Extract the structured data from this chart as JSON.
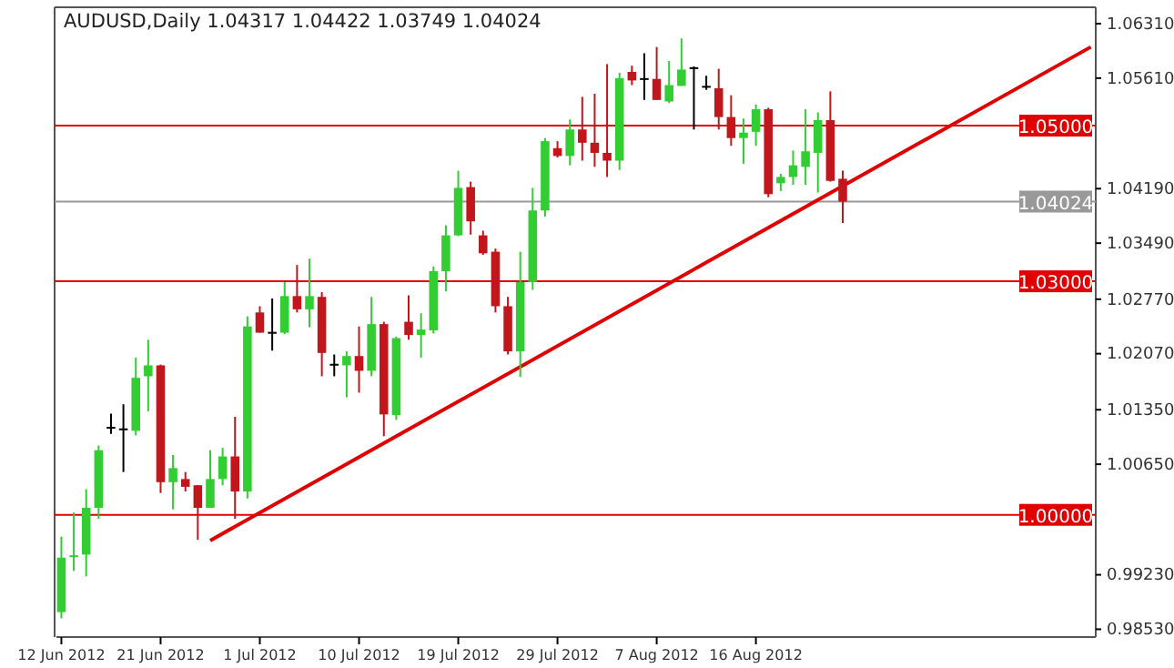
{
  "chart_data": {
    "type": "candlestick",
    "title": "AUDUSD,Daily  1.04317 1.04422 1.03749 1.04024",
    "categories": [
      "12 Jun 2012",
      null,
      null,
      null,
      null,
      null,
      null,
      null,
      "21 Jun 2012",
      null,
      null,
      null,
      null,
      null,
      null,
      null,
      "1 Jul 2012",
      null,
      null,
      null,
      null,
      null,
      null,
      null,
      "10 Jul 2012",
      null,
      null,
      null,
      null,
      null,
      null,
      null,
      "19 Jul 2012",
      null,
      null,
      null,
      null,
      null,
      null,
      null,
      "29 Jul 2012",
      null,
      null,
      null,
      null,
      null,
      null,
      null,
      "7 Aug 2012",
      null,
      null,
      null,
      null,
      null,
      null,
      null,
      "16 Aug 2012",
      null,
      null,
      null,
      null,
      null,
      null,
      null,
      null,
      null,
      null,
      null,
      null,
      null,
      null,
      null,
      null,
      null,
      null,
      null,
      null,
      null,
      null,
      null,
      null,
      null,
      null,
      null
    ],
    "ohlc": [
      [
        0.9875,
        0.9972,
        0.9867,
        0.9945
      ],
      [
        0.9946,
        1.0003,
        0.9928,
        0.9948
      ],
      [
        0.9949,
        1.0033,
        0.9921,
        1.0009
      ],
      [
        1.0009,
        1.0089,
        0.9995,
        1.0083
      ],
      [
        1.0112,
        1.013,
        1.0104,
        1.0113
      ],
      [
        1.0111,
        1.0142,
        1.0055,
        1.011
      ],
      [
        1.0108,
        1.0202,
        1.0102,
        1.0176
      ],
      [
        1.0178,
        1.0225,
        1.0133,
        1.0192
      ],
      [
        1.0192,
        1.0193,
        1.0028,
        1.0042
      ],
      [
        1.0042,
        1.0077,
        1.0007,
        1.006
      ],
      [
        1.0046,
        1.0055,
        1.003,
        1.0036
      ],
      [
        1.0038,
        1.0038,
        0.9968,
        1.0009
      ],
      [
        1.0009,
        1.0083,
        1.0009,
        1.0046
      ],
      [
        1.0046,
        1.0086,
        1.0038,
        1.0075
      ],
      [
        1.0075,
        1.0126,
        0.9995,
        1.003
      ],
      [
        1.003,
        1.0255,
        1.0021,
        1.0242
      ],
      [
        1.026,
        1.0268,
        1.0234,
        1.0234
      ],
      [
        1.0235,
        1.0278,
        1.0211,
        1.0234
      ],
      [
        1.0234,
        1.0299,
        1.0232,
        1.0281
      ],
      [
        1.0281,
        1.0321,
        1.026,
        1.0264
      ],
      [
        1.0264,
        1.0329,
        1.0241,
        1.0281
      ],
      [
        1.028,
        1.0286,
        1.0178,
        1.0208
      ],
      [
        1.0194,
        1.0206,
        1.0178,
        1.0193
      ],
      [
        1.0192,
        1.021,
        1.0151,
        1.0204
      ],
      [
        1.0204,
        1.0242,
        1.0157,
        1.0185
      ],
      [
        1.0185,
        1.028,
        1.0178,
        1.0245
      ],
      [
        1.0245,
        1.0248,
        1.0101,
        1.0129
      ],
      [
        1.0128,
        1.0229,
        1.0122,
        1.0227
      ],
      [
        1.0248,
        1.0282,
        1.0225,
        1.0231
      ],
      [
        1.0231,
        1.0259,
        1.0202,
        1.0238
      ],
      [
        1.0237,
        1.0319,
        1.0233,
        1.0313
      ],
      [
        1.0313,
        1.0372,
        1.0287,
        1.0359
      ],
      [
        1.0359,
        1.0442,
        1.0358,
        1.042
      ],
      [
        1.0421,
        1.0428,
        1.036,
        1.0377
      ],
      [
        1.0359,
        1.0365,
        1.0334,
        1.0336
      ],
      [
        1.0338,
        1.0342,
        1.026,
        1.0268
      ],
      [
        1.0268,
        1.028,
        1.0206,
        1.021
      ],
      [
        1.021,
        1.0338,
        1.0177,
        1.0299
      ],
      [
        1.0299,
        1.042,
        1.0289,
        1.0391
      ],
      [
        1.0391,
        1.0484,
        1.0383,
        1.048
      ],
      [
        1.0471,
        1.048,
        1.0459,
        1.0461
      ],
      [
        1.0461,
        1.0508,
        1.0449,
        1.0495
      ],
      [
        1.0495,
        1.0537,
        1.0455,
        1.0478
      ],
      [
        1.0478,
        1.0541,
        1.0447,
        1.0465
      ],
      [
        1.0465,
        1.0579,
        1.0434,
        1.0455
      ],
      [
        1.0455,
        1.0568,
        1.0443,
        1.0561
      ],
      [
        1.0569,
        1.0577,
        1.0552,
        1.0558
      ],
      [
        1.0561,
        1.0593,
        1.0533,
        1.056
      ],
      [
        1.056,
        1.0601,
        1.0533,
        1.0533
      ],
      [
        1.0531,
        1.0583,
        1.0529,
        1.0552
      ],
      [
        1.0551,
        1.0612,
        1.0551,
        1.0572
      ],
      [
        1.0575,
        1.0576,
        1.0495,
        1.0574
      ],
      [
        1.0551,
        1.0564,
        1.0546,
        1.055
      ],
      [
        1.0548,
        1.0573,
        1.0495,
        1.0511
      ],
      [
        1.0511,
        1.0539,
        1.0474,
        1.0484
      ],
      [
        1.0484,
        1.0509,
        1.0451,
        1.0491
      ],
      [
        1.0492,
        1.0527,
        1.0474,
        1.0521
      ],
      [
        1.0521,
        1.0523,
        1.0408,
        1.0412
      ],
      [
        1.0426,
        1.0438,
        1.0416,
        1.0434
      ],
      [
        1.0434,
        1.0468,
        1.0424,
        1.0449
      ],
      [
        1.0447,
        1.0521,
        1.0424,
        1.0467
      ],
      [
        1.0465,
        1.0517,
        1.0414,
        1.0507
      ],
      [
        1.0507,
        1.0544,
        1.0428,
        1.0429
      ],
      [
        1.04317,
        1.04422,
        1.03749,
        1.04024
      ],
      null,
      null,
      null,
      null,
      null,
      null,
      null,
      null,
      null,
      null,
      null,
      null,
      null,
      null,
      null,
      null,
      null,
      null,
      null,
      null
    ],
    "colors": [
      "#32cd32",
      "#32cd32",
      "#32cd32",
      "#32cd32",
      "#000000",
      "#000000",
      "#32cd32",
      "#32cd32",
      "#c0161c",
      "#32cd32",
      "#c0161c",
      "#c0161c",
      "#32cd32",
      "#32cd32",
      "#c0161c",
      "#32cd32",
      "#c0161c",
      "#000000",
      "#32cd32",
      "#c0161c",
      "#32cd32",
      "#c0161c",
      "#000000",
      "#32cd32",
      "#c0161c",
      "#32cd32",
      "#c0161c",
      "#32cd32",
      "#c0161c",
      "#32cd32",
      "#32cd32",
      "#32cd32",
      "#32cd32",
      "#c0161c",
      "#c0161c",
      "#c0161c",
      "#c0161c",
      "#32cd32",
      "#32cd32",
      "#32cd32",
      "#c0161c",
      "#32cd32",
      "#c0161c",
      "#c0161c",
      "#c0161c",
      "#32cd32",
      "#c0161c",
      "#000000",
      "#c0161c",
      "#32cd32",
      "#32cd32",
      "#000000",
      "#000000",
      "#c0161c",
      "#c0161c",
      "#32cd32",
      "#32cd32",
      "#c0161c",
      "#32cd32",
      "#32cd32",
      "#32cd32",
      "#32cd32",
      "#c0161c",
      "#c0161c",
      null,
      null,
      null,
      null,
      null,
      null,
      null,
      null,
      null,
      null,
      null,
      null,
      null,
      null,
      null,
      null,
      null,
      null,
      null,
      null
    ],
    "series": [
      {
        "type": "line",
        "color": "#e00000",
        "values": [
          null,
          null,
          null,
          null,
          null,
          null,
          null,
          null,
          null,
          null,
          null,
          null,
          0.9967,
          null,
          null,
          null,
          null,
          null,
          null,
          null,
          null,
          null,
          null,
          null,
          null,
          null,
          null,
          null,
          null,
          null,
          null,
          null,
          null,
          null,
          null,
          null,
          null,
          null,
          null,
          null,
          null,
          null,
          null,
          null,
          null,
          null,
          null,
          null,
          null,
          null,
          null,
          null,
          null,
          null,
          null,
          null,
          null,
          null,
          null,
          null,
          null,
          null,
          null,
          null,
          null,
          null,
          null,
          null,
          null,
          null,
          null,
          null,
          null,
          null,
          null,
          null,
          null,
          null,
          null,
          null,
          null,
          null,
          null,
          1.0601
        ]
      }
    ],
    "ylim": [
      0.9843,
      1.0652
    ],
    "yticks": [
      {
        "value": 1.0631,
        "label": "1.06310"
      },
      {
        "value": 1.0561,
        "label": "1.05610"
      },
      {
        "value": 1.0419,
        "label": "1.04190"
      },
      {
        "value": 1.0349,
        "label": "1.03490"
      },
      {
        "value": 1.0277,
        "label": "1.02770"
      },
      {
        "value": 1.0207,
        "label": "1.02070"
      },
      {
        "value": 1.0135,
        "label": "1.01350"
      },
      {
        "value": 1.0065,
        "label": "1.00650"
      },
      {
        "value": 0.9923,
        "label": "0.99230"
      },
      {
        "value": 0.9853,
        "label": "0.98530"
      }
    ],
    "ref_lines": [
      {
        "axis": "y",
        "value": 1.05,
        "label": "1.05000",
        "color": "#e00000"
      },
      {
        "axis": "y",
        "value": 1.03,
        "label": "1.03000",
        "color": "#e00000"
      },
      {
        "axis": "y",
        "value": 1.0,
        "label": "1.00000",
        "color": "#e00000"
      },
      {
        "axis": "y",
        "value": 1.04024,
        "label": "1.04024",
        "color": "#999999"
      }
    ]
  }
}
